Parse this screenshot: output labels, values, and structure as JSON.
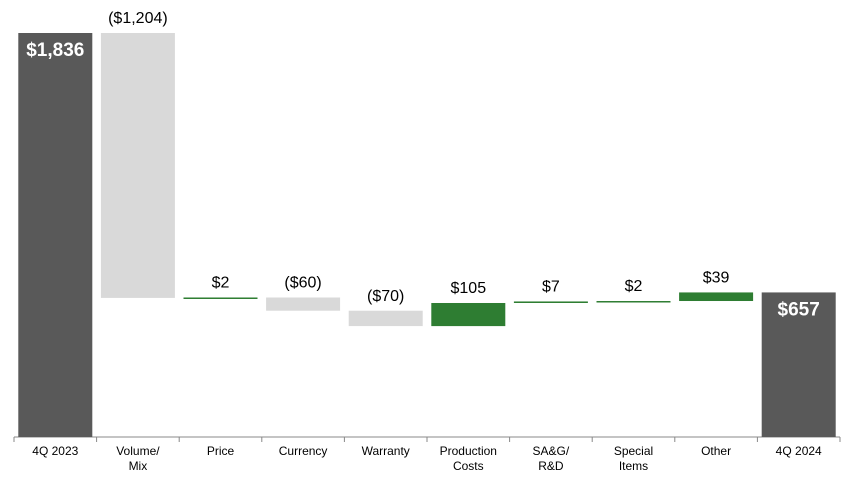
{
  "chart_data": {
    "type": "waterfall",
    "categories": [
      "4Q 2023",
      "Volume/\nMix",
      "Price",
      "Currency",
      "Warranty",
      "Production\nCosts",
      "SA&G/\nR&D",
      "Special\nItems",
      "Other",
      "4Q 2024"
    ],
    "values": [
      1836,
      -1204,
      2,
      -60,
      -70,
      105,
      7,
      2,
      39,
      657
    ],
    "value_labels": [
      "$1,836",
      "($1,204)",
      "$2",
      "($60)",
      "($70)",
      "$105",
      "$7",
      "$2",
      "$39",
      "$657"
    ],
    "total_color": "#595959",
    "increase_color": "#2e7d32",
    "decrease_color": "#d9d9d9"
  }
}
